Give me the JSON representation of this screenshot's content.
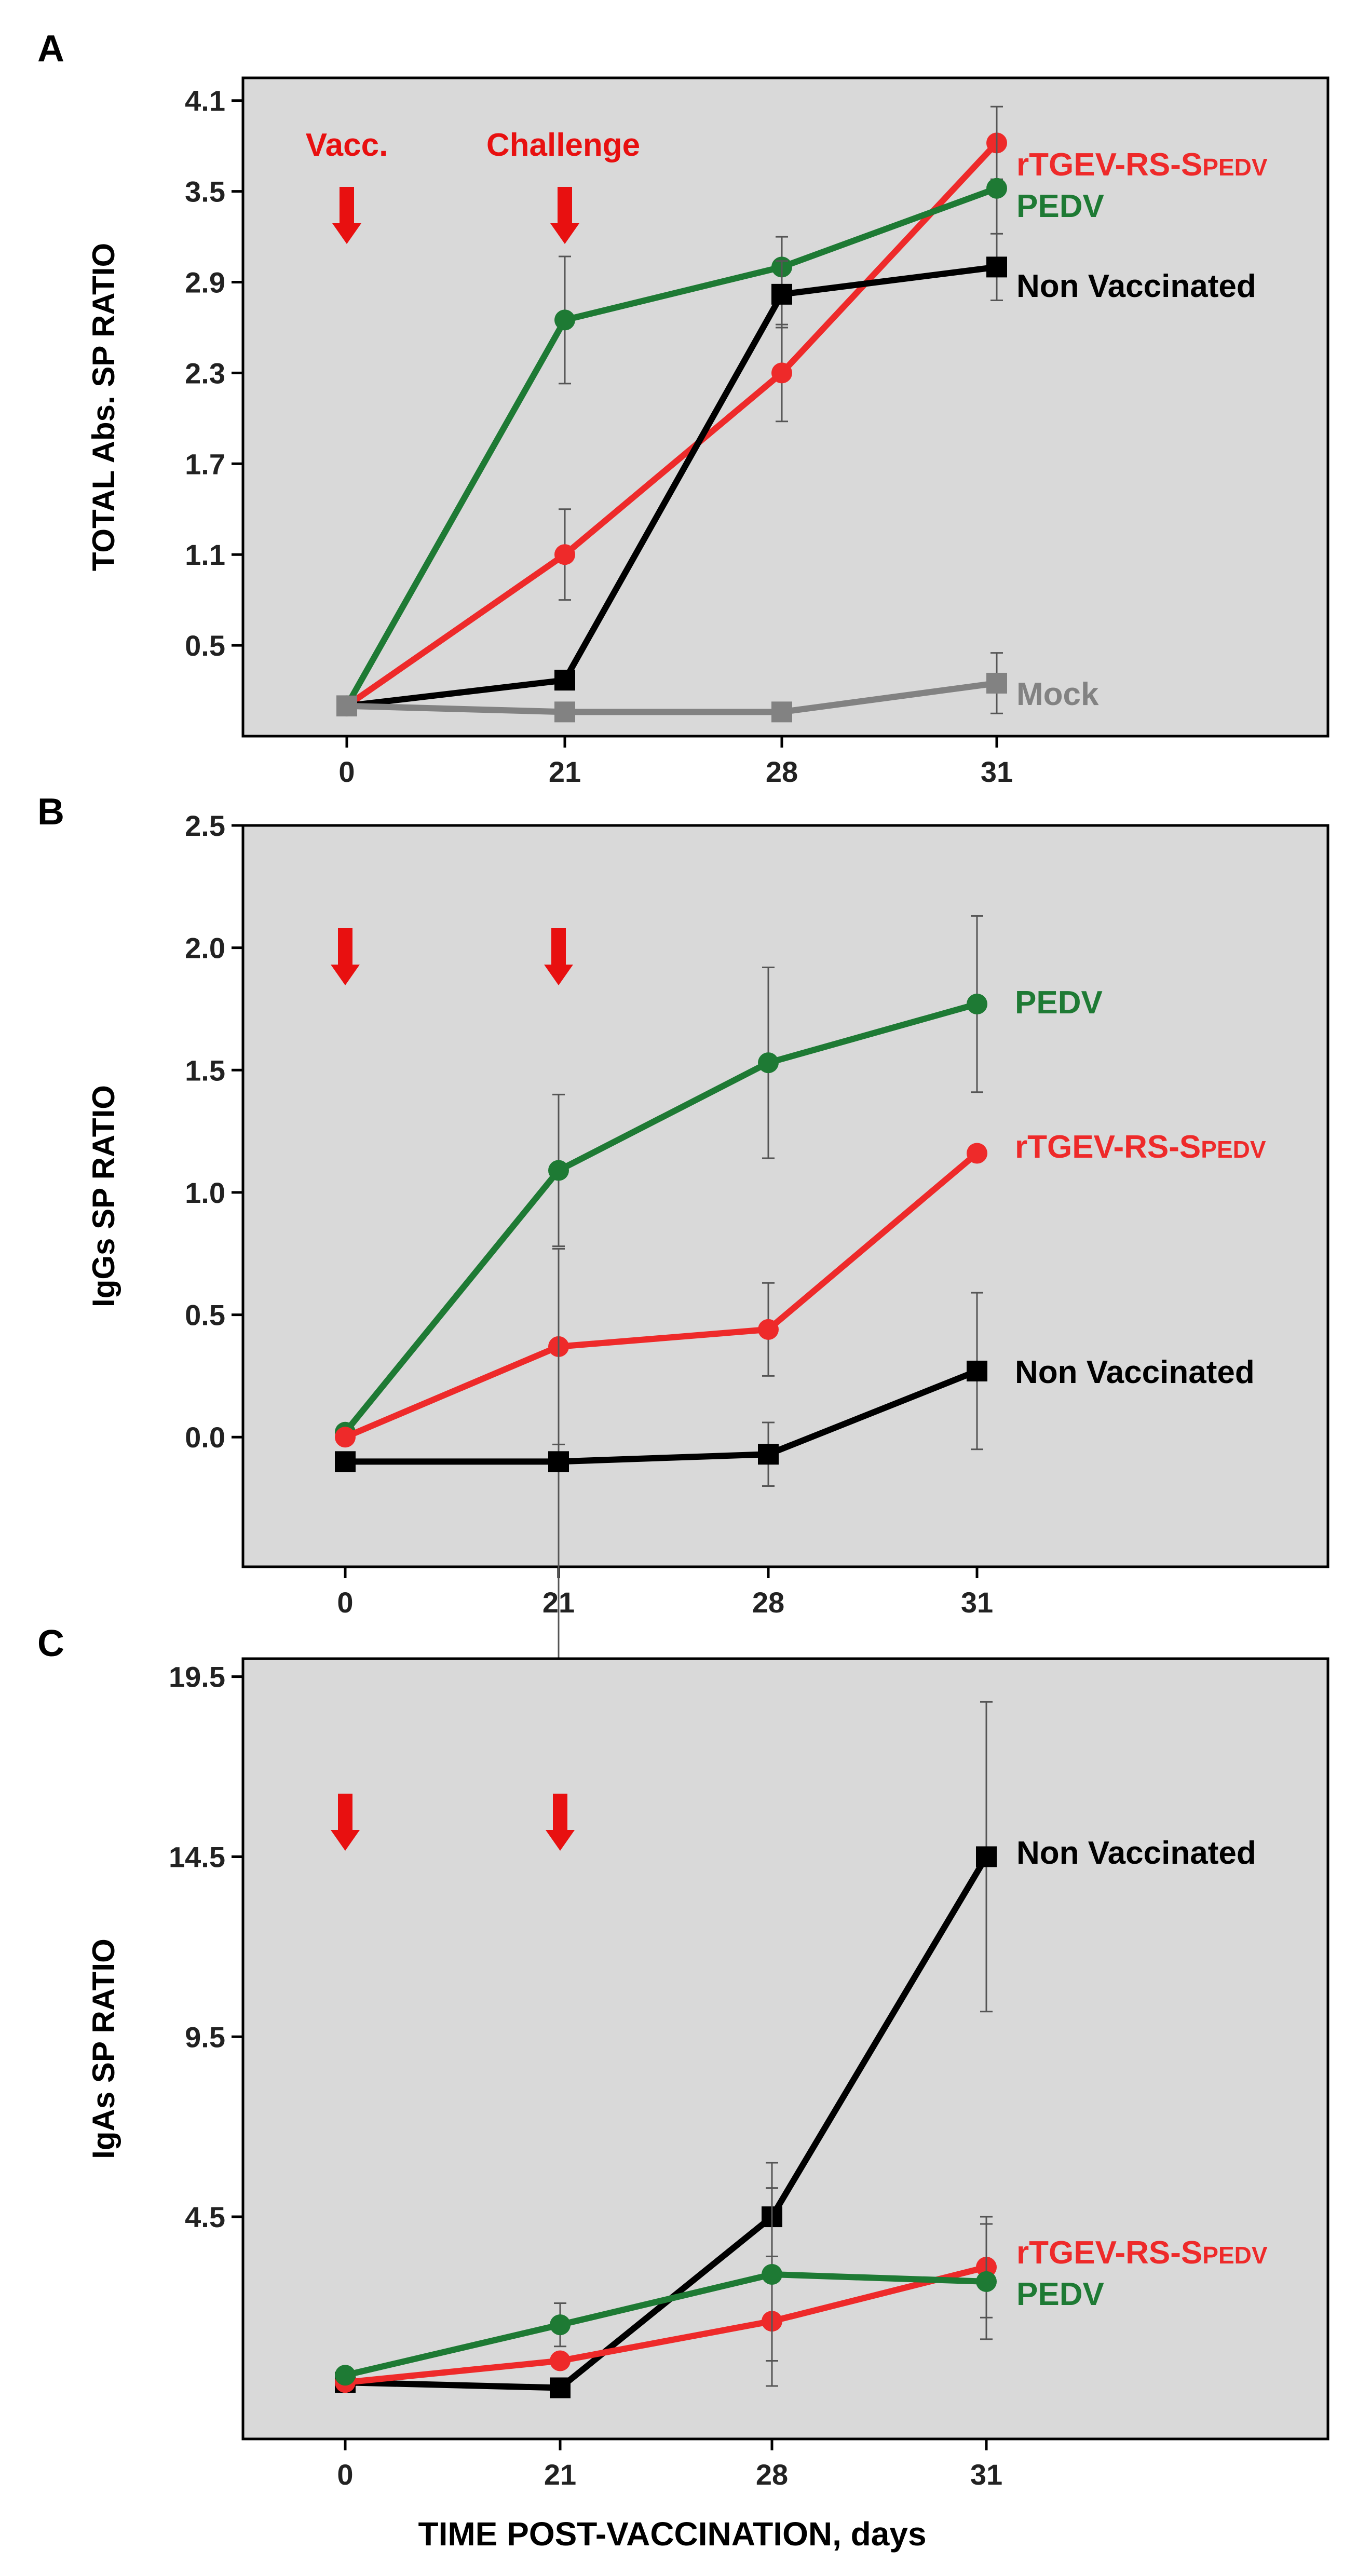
{
  "figure": {
    "xlabel": "TIME POST-VACCINATION, days"
  },
  "colors": {
    "red": "#ee2a2a",
    "green": "#1e7a34",
    "black": "#000000",
    "gray": "#828282",
    "panel_bg": "#d9d9d9",
    "arrow": "#e81010"
  },
  "chart_data": [
    {
      "panel": "A",
      "type": "line",
      "title": "",
      "xlabel": "",
      "ylabel": "TOTAL Abs. SP RATIO",
      "x": [
        0,
        21,
        28,
        31
      ],
      "xticks": [
        "0",
        "21",
        "28",
        "31"
      ],
      "yticks": [
        "0.5",
        "1.1",
        "1.7",
        "2.3",
        "2.9",
        "3.5",
        "4.1"
      ],
      "ylim": [
        -0.1,
        4.25
      ],
      "annotations": [
        "Vacc.",
        "Challenge"
      ],
      "arrows_at_x": [
        0,
        21
      ],
      "series": [
        {
          "name": "rTGEV-RS-S",
          "label_sub": "PEDV",
          "color": "red",
          "marker": "circle",
          "values": [
            0.1,
            1.1,
            2.3,
            3.82
          ],
          "error": [
            0,
            0.3,
            0.32,
            0.24
          ]
        },
        {
          "name": "PEDV",
          "label_sub": "",
          "color": "green",
          "marker": "circle",
          "values": [
            0.1,
            2.65,
            3.0,
            3.52
          ],
          "error": [
            0,
            0.42,
            0.2,
            0.54
          ]
        },
        {
          "name": "Non Vaccinated",
          "label_sub": "",
          "color": "black",
          "marker": "square",
          "values": [
            0.1,
            0.27,
            2.82,
            3.0
          ],
          "error": [
            0,
            0,
            0.22,
            0.22
          ]
        },
        {
          "name": "Mock",
          "label_sub": "",
          "color": "gray",
          "marker": "square",
          "values": [
            0.1,
            0.06,
            0.06,
            0.25
          ],
          "error": [
            0,
            0,
            0,
            0.2
          ]
        }
      ]
    },
    {
      "panel": "B",
      "type": "line",
      "title": "",
      "xlabel": "",
      "ylabel": "IgGs SP RATIO",
      "x": [
        0,
        21,
        28,
        31
      ],
      "xticks": [
        "0",
        "21",
        "28",
        "31"
      ],
      "yticks": [
        "0.0",
        "0.5",
        "1.0",
        "1.5",
        "2.0",
        "2.5"
      ],
      "ylim": [
        -0.53,
        2.5
      ],
      "annotations": [],
      "arrows_at_x": [
        0,
        21
      ],
      "series": [
        {
          "name": "PEDV",
          "label_sub": "",
          "color": "green",
          "marker": "circle",
          "values": [
            0.02,
            1.09,
            1.53,
            1.77
          ],
          "error": [
            0,
            0.31,
            0.39,
            0.36
          ]
        },
        {
          "name": "rTGEV-RS-S",
          "label_sub": "PEDV",
          "color": "red",
          "marker": "circle",
          "values": [
            0.0,
            0.37,
            0.44,
            1.16
          ],
          "error": [
            0,
            0.4,
            0.19,
            0.03
          ]
        },
        {
          "name": "Non Vaccinated",
          "label_sub": "",
          "color": "black",
          "marker": "square",
          "values": [
            -0.1,
            -0.1,
            -0.07,
            0.27
          ],
          "error": [
            0,
            0.87,
            0.13,
            0.32
          ]
        }
      ]
    },
    {
      "panel": "C",
      "type": "line",
      "title": "",
      "xlabel": "",
      "ylabel": "IgAs SP RATIO",
      "x": [
        0,
        21,
        28,
        31
      ],
      "xticks": [
        "0",
        "21",
        "28",
        "31"
      ],
      "yticks": [
        "4.5",
        "9.5",
        "14.5",
        "19.5"
      ],
      "ylim": [
        -1.67,
        20.0
      ],
      "annotations": [],
      "arrows_at_x": [
        0,
        21
      ],
      "series": [
        {
          "name": "Non Vaccinated",
          "label_sub": "",
          "color": "black",
          "marker": "square",
          "values": [
            -0.1,
            -0.25,
            4.5,
            14.5
          ],
          "error": [
            0,
            0,
            1.5,
            4.3
          ]
        },
        {
          "name": "rTGEV-RS-S",
          "label_sub": "PEDV",
          "color": "red",
          "marker": "circle",
          "values": [
            -0.1,
            0.5,
            1.6,
            3.1
          ],
          "error": [
            0,
            0,
            1.8,
            1.4
          ]
        },
        {
          "name": "PEDV",
          "label_sub": "",
          "color": "green",
          "marker": "circle",
          "values": [
            0.1,
            1.5,
            2.9,
            2.7
          ],
          "error": [
            0,
            0.6,
            2.4,
            1.6
          ]
        }
      ]
    }
  ]
}
